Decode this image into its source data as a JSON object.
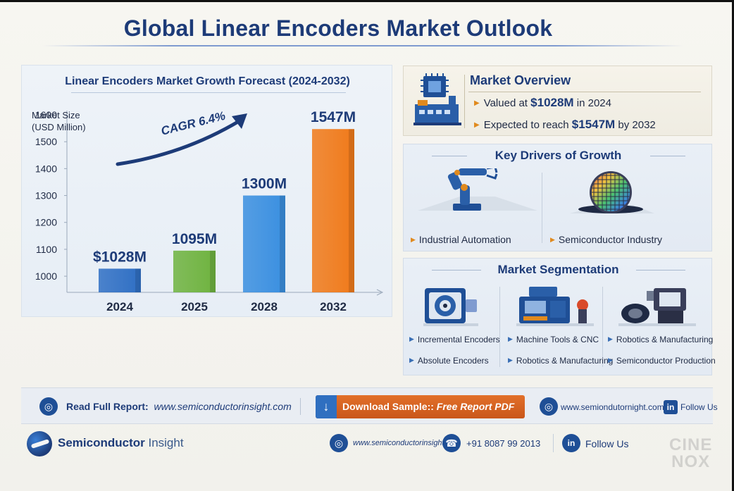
{
  "title": "Global Linear Encoders Market Outlook",
  "colors": {
    "primary": "#1d3b78",
    "accent": "#e08a1e",
    "download": "#d9642a"
  },
  "chart": {
    "title": "Linear Encoders Market Growth Forecast (2024-2032)",
    "ylabel_line1": "Market Size",
    "ylabel_line2": "(USD Million)",
    "cagr_label": "CAGR 6.4%",
    "bar_labels": [
      "$1028M",
      "1095M",
      "1300M",
      "1547M"
    ]
  },
  "chart_data": {
    "type": "bar",
    "title": "Linear Encoders Market Growth Forecast (2024-2032)",
    "ylabel": "Market Size (USD Million)",
    "xlabel": "",
    "categories": [
      "2024",
      "2025",
      "2028",
      "2032"
    ],
    "values": [
      1028,
      1095,
      1300,
      1547
    ],
    "yticks": [
      1000,
      1100,
      1200,
      1300,
      1400,
      1500,
      1600
    ],
    "ylim": [
      940,
      1600
    ],
    "bar_colors": [
      "#2f6fc4",
      "#6fb33f",
      "#3a8fe0",
      "#f07a1a"
    ],
    "grid": false,
    "annotations": [
      "CAGR 6.4%"
    ]
  },
  "overview": {
    "heading": "Market Overview",
    "item1_prefix": "Valued at ",
    "item1_value": "$1028M",
    "item1_suffix": " in 2024",
    "item2_prefix": "Expected to reach ",
    "item2_value": "$1547M",
    "item2_suffix": " by 2032"
  },
  "drivers": {
    "heading": "Key Drivers of Growth",
    "items": [
      "Industrial Automation",
      "Semiconductor Industry"
    ]
  },
  "segmentation": {
    "heading": "Market Segmentation",
    "col1": [
      "Incremental Encoders",
      "Absolute Encoders"
    ],
    "col2": [
      "Machine Tools & CNC",
      "Robotics & Manufacturing"
    ],
    "col3": [
      "Robotics & Manufacturing",
      "Semiconductor Production"
    ]
  },
  "banner": {
    "read_label": "Read Full Report:",
    "read_url": "www.semiconductorinsight.com",
    "download_label": "Download Sample:: ",
    "download_emphasis": "Free Report PDF",
    "site": "www.semiondutornight.com",
    "follow": "Follow Us"
  },
  "footer": {
    "brand_bold": "Semiconductor",
    "brand_light": " Insight",
    "site": "www.semiconductorinsight",
    "phone": "+91 8087 99 2013",
    "follow": "Follow Us"
  },
  "watermark": {
    "line1": "CINE",
    "line2": "NOX"
  }
}
